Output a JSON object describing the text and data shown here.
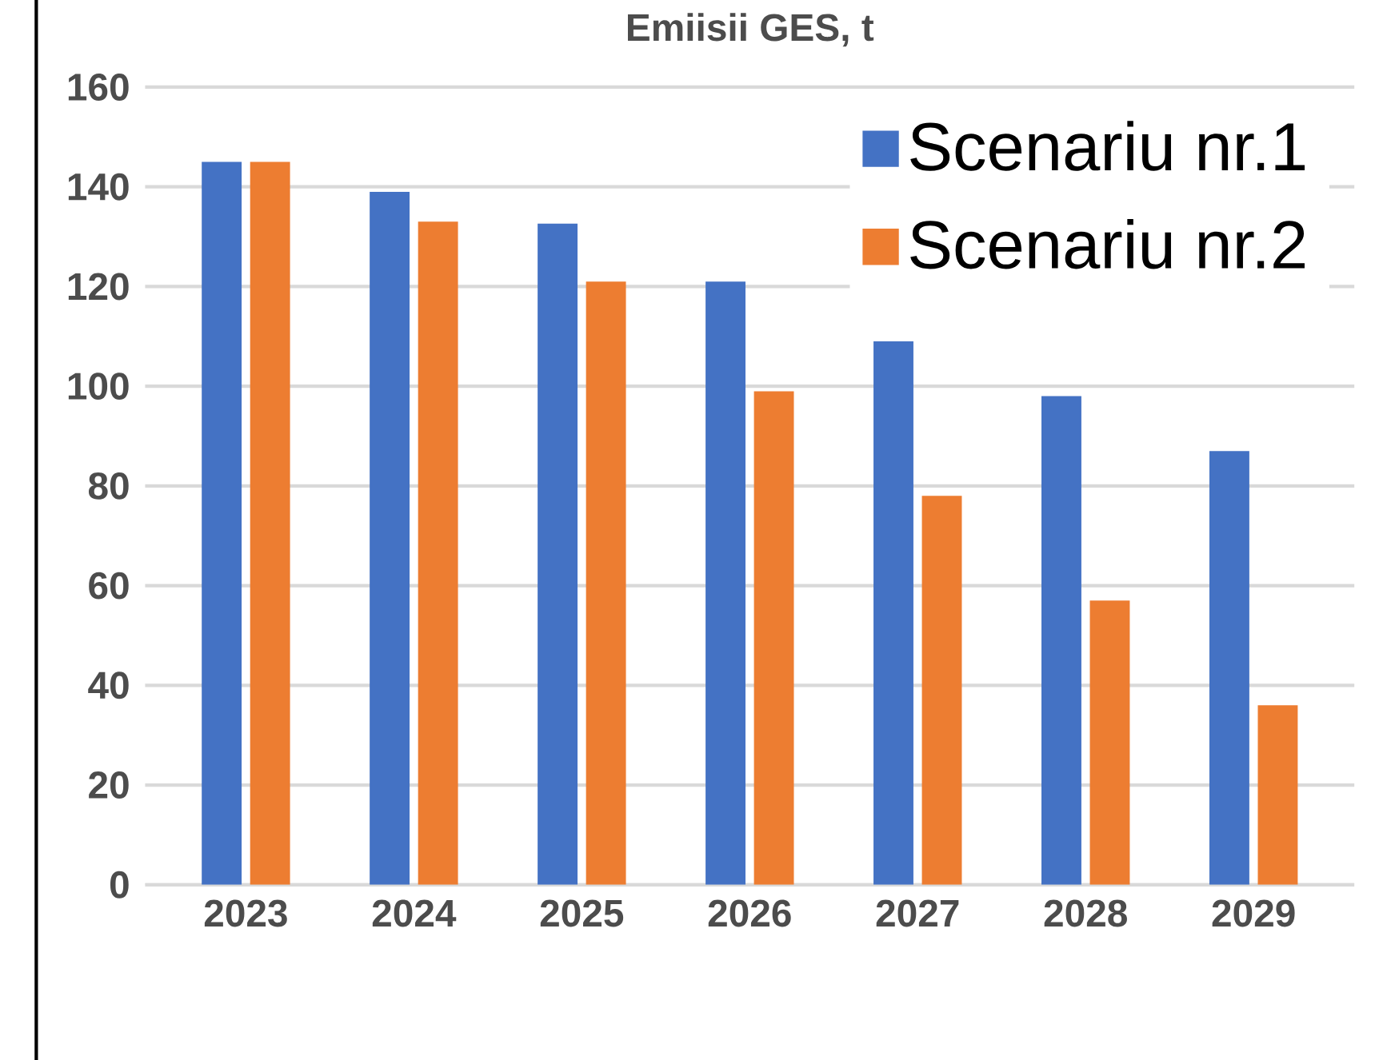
{
  "chart_data": {
    "type": "bar",
    "title": "Emiisii GES, t",
    "categories": [
      "2023",
      "2024",
      "2025",
      "2026",
      "2027",
      "2028",
      "2029"
    ],
    "series": [
      {
        "name": "Scenariu nr.1",
        "color": "#4472c4",
        "values": [
          145,
          139,
          132.6,
          121,
          109,
          98,
          87
        ]
      },
      {
        "name": "Scenariu nr.2",
        "color": "#ed7d31",
        "values": [
          145,
          133,
          121,
          99,
          78,
          57,
          36
        ]
      }
    ],
    "ylim": [
      0,
      160
    ],
    "yticks": [
      0,
      20,
      40,
      60,
      80,
      100,
      120,
      140,
      160
    ],
    "grid": "y",
    "legend": "top right"
  }
}
